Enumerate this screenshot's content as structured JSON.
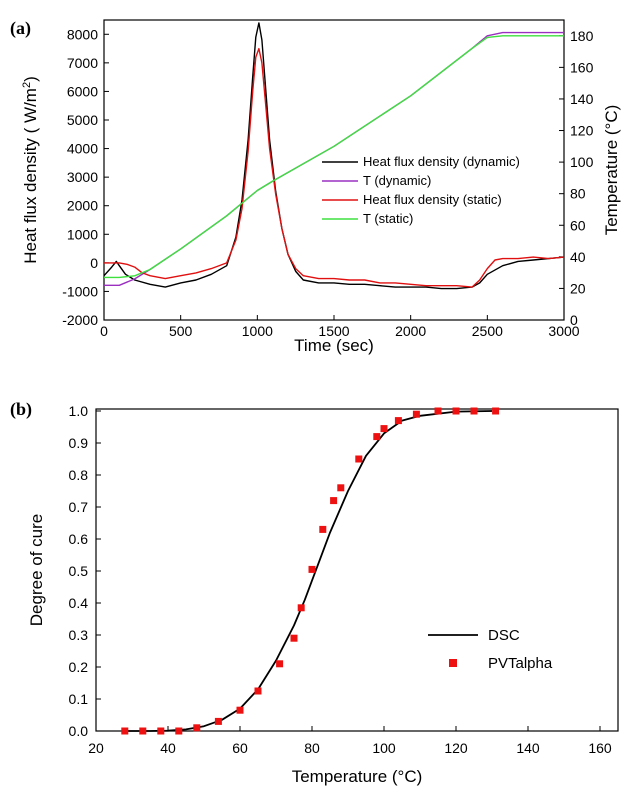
{
  "chart_data": [
    {
      "type": "line",
      "panel_label": "(a)",
      "xlabel": "Time (sec)",
      "ylabel_left": "Heat flux density ( W/m",
      "ylabel_left_sup": "2",
      "ylabel_left_end": ")",
      "ylabel_right": "Temperature (°C)",
      "xlim": [
        0,
        3000
      ],
      "ylim_left": [
        -2000,
        8500
      ],
      "ylim_right": [
        0,
        190
      ],
      "xticks": [
        "0",
        "500",
        "1000",
        "1500",
        "2000",
        "2500",
        "3000"
      ],
      "yticks_left": [
        "-2000",
        "-1000",
        "0",
        "1000",
        "2000",
        "3000",
        "4000",
        "5000",
        "6000",
        "7000",
        "8000"
      ],
      "yticks_right": [
        "0",
        "20",
        "40",
        "60",
        "80",
        "100",
        "120",
        "140",
        "160",
        "180"
      ],
      "legend_position": "center-right",
      "series": [
        {
          "name": "Heat flux density (dynamic)",
          "axis": "left",
          "color": "#000000",
          "x": [
            0,
            50,
            80,
            100,
            140,
            200,
            300,
            400,
            500,
            600,
            700,
            800,
            860,
            900,
            940,
            970,
            990,
            1010,
            1030,
            1050,
            1080,
            1120,
            1160,
            1200,
            1250,
            1300,
            1400,
            1500,
            1600,
            1700,
            1800,
            1900,
            2000,
            2100,
            2200,
            2300,
            2400,
            2450,
            2500,
            2600,
            2700,
            2800,
            2900,
            3000
          ],
          "y": [
            -450,
            -150,
            50,
            -100,
            -400,
            -600,
            -750,
            -850,
            -700,
            -600,
            -400,
            -100,
            900,
            2200,
            4300,
            6500,
            7900,
            8400,
            7800,
            6400,
            4300,
            2500,
            1200,
            300,
            -300,
            -600,
            -700,
            -700,
            -750,
            -750,
            -800,
            -850,
            -850,
            -850,
            -900,
            -900,
            -850,
            -700,
            -400,
            -100,
            50,
            100,
            150,
            200
          ]
        },
        {
          "name": "T (dynamic)",
          "axis": "right",
          "color": "#9b30c0",
          "x": [
            0,
            100,
            200,
            300,
            500,
            800,
            1000,
            1100,
            1500,
            2000,
            2400,
            2500,
            2600,
            3000
          ],
          "y": [
            22,
            22,
            26,
            32,
            45,
            66,
            82,
            88,
            110,
            142,
            172,
            180,
            182,
            182
          ]
        },
        {
          "name": "Heat flux density (static)",
          "axis": "left",
          "color": "#e01010",
          "x": [
            0,
            100,
            150,
            200,
            250,
            300,
            400,
            500,
            600,
            700,
            800,
            860,
            900,
            940,
            970,
            990,
            1010,
            1030,
            1050,
            1080,
            1120,
            1160,
            1200,
            1250,
            1300,
            1400,
            1500,
            1600,
            1700,
            1800,
            1900,
            2000,
            2100,
            2200,
            2300,
            2400,
            2450,
            2500,
            2550,
            2600,
            2700,
            2800,
            2900,
            3000
          ],
          "y": [
            0,
            0,
            -50,
            -150,
            -350,
            -450,
            -550,
            -450,
            -350,
            -200,
            0,
            800,
            1900,
            3900,
            6000,
            7200,
            7500,
            7000,
            5800,
            4000,
            2400,
            1200,
            300,
            -200,
            -450,
            -550,
            -550,
            -600,
            -600,
            -700,
            -700,
            -750,
            -800,
            -800,
            -800,
            -850,
            -600,
            -200,
            100,
            150,
            150,
            200,
            150,
            200
          ]
        },
        {
          "name": "T (static)",
          "axis": "right",
          "color": "#3ee03e",
          "x": [
            0,
            100,
            200,
            300,
            500,
            800,
            1000,
            1100,
            1500,
            2000,
            2400,
            2500,
            2600,
            3000
          ],
          "y": [
            27,
            27,
            28,
            32,
            45,
            66,
            82,
            88,
            110,
            142,
            172,
            179,
            180,
            180
          ]
        }
      ]
    },
    {
      "type": "line",
      "panel_label": "(b)",
      "xlabel": "Temperature (°C)",
      "ylabel": "Degree of cure",
      "xlim": [
        20,
        165
      ],
      "ylim": [
        0,
        1.0
      ],
      "xticks": [
        "20",
        "40",
        "60",
        "80",
        "100",
        "120",
        "140",
        "160"
      ],
      "yticks": [
        "0.0",
        "0.1",
        "0.2",
        "0.3",
        "0.4",
        "0.5",
        "0.6",
        "0.7",
        "0.8",
        "0.9",
        "1.0"
      ],
      "legend_position": "center-right",
      "series": [
        {
          "name": "DSC",
          "style": "line",
          "color": "#000000",
          "x": [
            28,
            35,
            40,
            45,
            50,
            55,
            60,
            65,
            70,
            75,
            78,
            80,
            82,
            85,
            90,
            95,
            100,
            105,
            110,
            120,
            130
          ],
          "y": [
            0,
            0,
            0.001,
            0.005,
            0.015,
            0.035,
            0.07,
            0.13,
            0.22,
            0.33,
            0.41,
            0.47,
            0.53,
            0.62,
            0.75,
            0.86,
            0.93,
            0.97,
            0.985,
            0.998,
            1.0
          ]
        },
        {
          "name": "PVTalpha",
          "style": "marker",
          "color": "#ee1111",
          "x": [
            28,
            33,
            38,
            43,
            48,
            54,
            60,
            65,
            71,
            75,
            77,
            80,
            83,
            86,
            88,
            93,
            98,
            100,
            104,
            109,
            115,
            120,
            125,
            131
          ],
          "y": [
            0,
            0,
            0,
            0,
            0.01,
            0.03,
            0.065,
            0.125,
            0.21,
            0.29,
            0.385,
            0.505,
            0.63,
            0.72,
            0.76,
            0.85,
            0.92,
            0.945,
            0.97,
            0.99,
            1.0,
            1.0,
            1.0,
            1.0
          ]
        }
      ]
    }
  ]
}
